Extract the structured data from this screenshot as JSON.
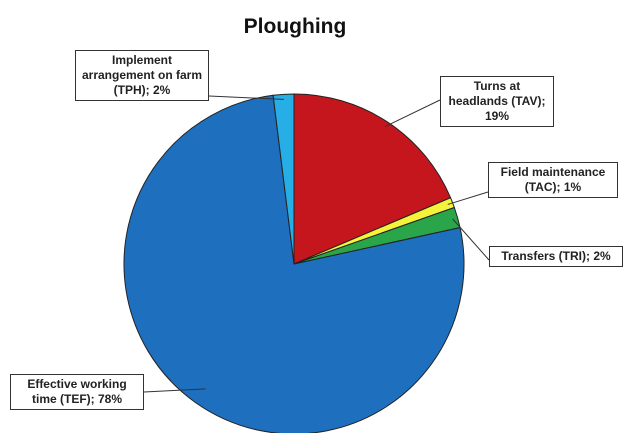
{
  "chart_data": {
    "type": "pie",
    "title": "Ploughing",
    "categories": [
      "Turns at headlands (TAV); 19%",
      "Field maintenance (TAC); 1%",
      "Transfers (TRI); 2%",
      "Effective working time (TEF); 78%",
      "Implement arrangement on farm (TPH); 2%"
    ],
    "values": [
      19,
      1,
      2,
      78,
      2
    ],
    "colors": [
      "#c4161c",
      "#f4f23a",
      "#2aa54a",
      "#1f6fbf",
      "#27aee6"
    ]
  }
}
